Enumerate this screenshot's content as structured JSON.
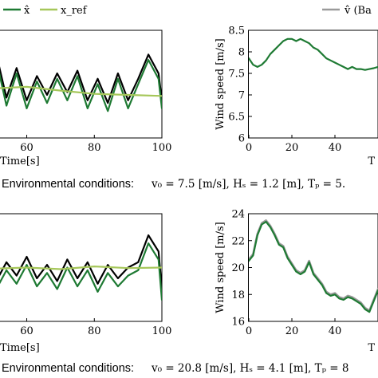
{
  "legend_left": {
    "entries": [
      {
        "label": "x̂",
        "color": "#1e7a33"
      },
      {
        "label": "x_ref",
        "color": "#a6c75a"
      }
    ]
  },
  "legend_right": {
    "entries": [
      {
        "label": "v̂ (Ba",
        "color": "#9a9a9a"
      }
    ]
  },
  "captions": [
    {
      "sans": "Environmental conditions:",
      "math": "v₀ = 7.5 [m/s], Hₛ = 1.2 [m], Tₚ = 5."
    },
    {
      "sans": "Environmental conditions:",
      "math": "v₀ = 20.8 [m/s], Hₛ = 4.1 [m], Tₚ = 8"
    }
  ],
  "chart_data": [
    {
      "type": "line",
      "xlabel": "Time[s]",
      "xlim": [
        0,
        100
      ],
      "xticks": [
        60,
        80,
        100
      ],
      "ylim": [
        -1,
        1
      ],
      "colors": {
        "black": "#000000",
        "x_hat": "#1e7a33",
        "x_ref": "#a6c75a"
      },
      "series": [
        {
          "name": "",
          "color": "#000000",
          "x": [
            0,
            3,
            6,
            9,
            12,
            15,
            18,
            21,
            24,
            27,
            30,
            33,
            36,
            39,
            42,
            45,
            48,
            51,
            54,
            57,
            60,
            63,
            66,
            69,
            72,
            75,
            78,
            81,
            84,
            87,
            90,
            93,
            96,
            99,
            100
          ],
          "y": [
            0.55,
            0.1,
            0.5,
            0.35,
            0.45,
            0.15,
            0.2,
            0.35,
            0.1,
            0.45,
            0.05,
            0.4,
            -0.1,
            0.3,
            -0.2,
            0.35,
            -0.05,
            0.55,
            -0.25,
            0.3,
            -0.3,
            0.15,
            -0.2,
            0.2,
            -0.15,
            0.25,
            -0.3,
            0.1,
            -0.35,
            0.2,
            -0.3,
            0.1,
            0.55,
            0.2,
            -0.3
          ]
        },
        {
          "name": "x̂",
          "color": "#1e7a33",
          "x": [
            0,
            3,
            6,
            9,
            12,
            15,
            18,
            21,
            24,
            27,
            30,
            33,
            36,
            39,
            42,
            45,
            48,
            51,
            54,
            57,
            60,
            63,
            66,
            69,
            72,
            75,
            78,
            81,
            84,
            87,
            90,
            93,
            96,
            99,
            100
          ],
          "y": [
            0.45,
            0.0,
            0.4,
            0.25,
            0.35,
            0.05,
            0.1,
            0.3,
            0.0,
            0.35,
            -0.1,
            0.3,
            -0.25,
            0.2,
            -0.35,
            0.25,
            -0.2,
            0.45,
            -0.4,
            0.2,
            -0.45,
            0.05,
            -0.35,
            0.1,
            -0.3,
            0.15,
            -0.45,
            0.0,
            -0.5,
            0.1,
            -0.45,
            0.0,
            0.45,
            0.1,
            -0.45
          ]
        },
        {
          "name": "x_ref",
          "color": "#a6c75a",
          "x": [
            0,
            10,
            20,
            30,
            40,
            50,
            60,
            70,
            80,
            90,
            100
          ],
          "y": [
            0.05,
            0.08,
            0.02,
            0.0,
            -0.04,
            -0.08,
            -0.05,
            -0.12,
            -0.18,
            -0.2,
            -0.22
          ]
        }
      ]
    },
    {
      "type": "line",
      "xlabel": "T",
      "ylabel": "Wind speed [m/s]",
      "xlim": [
        0,
        60
      ],
      "ylim": [
        6,
        8.5
      ],
      "xticks": [
        0,
        20,
        40
      ],
      "yticks": [
        6,
        6.5,
        7,
        7.5,
        8,
        8.5
      ],
      "ytick_labels": [
        "6",
        "6.5",
        "7",
        "7.5",
        "8",
        "8.5"
      ],
      "series": [
        {
          "name": "",
          "color": "#1e7a33",
          "x": [
            0,
            2,
            4,
            6,
            8,
            10,
            12,
            14,
            16,
            18,
            20,
            22,
            24,
            26,
            28,
            30,
            32,
            34,
            36,
            38,
            40,
            42,
            44,
            46,
            48,
            50,
            52,
            54,
            56,
            58,
            60
          ],
          "y": [
            7.85,
            7.7,
            7.65,
            7.7,
            7.8,
            7.95,
            8.05,
            8.15,
            8.25,
            8.3,
            8.3,
            8.25,
            8.3,
            8.25,
            8.2,
            8.1,
            8.05,
            7.95,
            7.85,
            7.8,
            7.75,
            7.7,
            7.65,
            7.6,
            7.65,
            7.6,
            7.6,
            7.58,
            7.6,
            7.62,
            7.65
          ]
        }
      ]
    },
    {
      "type": "line",
      "xlabel": "Time[s]",
      "xlim": [
        0,
        100
      ],
      "xticks": [
        60,
        80,
        100
      ],
      "ylim": [
        -1,
        1
      ],
      "series": [
        {
          "name": "",
          "color": "#000000",
          "x": [
            0,
            3,
            6,
            9,
            12,
            15,
            18,
            21,
            24,
            27,
            30,
            33,
            36,
            39,
            42,
            45,
            48,
            51,
            54,
            57,
            60,
            63,
            66,
            69,
            72,
            75,
            78,
            81,
            84,
            87,
            90,
            93,
            96,
            99,
            100
          ],
          "y": [
            0.5,
            0.6,
            0.35,
            0.2,
            0.45,
            0.0,
            0.4,
            -0.15,
            0.3,
            -0.2,
            0.35,
            0.0,
            0.45,
            -0.35,
            0.3,
            -0.1,
            0.25,
            -0.25,
            0.1,
            -0.15,
            0.2,
            -0.2,
            0.05,
            -0.25,
            0.15,
            -0.2,
            0.1,
            -0.3,
            0.05,
            -0.2,
            0.0,
            0.1,
            0.6,
            0.3,
            -0.4
          ]
        },
        {
          "name": "x̂",
          "color": "#1e7a33",
          "x": [
            0,
            3,
            6,
            9,
            12,
            15,
            18,
            21,
            24,
            27,
            30,
            33,
            36,
            39,
            42,
            45,
            48,
            51,
            54,
            57,
            60,
            63,
            66,
            69,
            72,
            75,
            78,
            81,
            84,
            87,
            90,
            93,
            96,
            99,
            100
          ],
          "y": [
            0.35,
            0.45,
            0.2,
            0.05,
            0.3,
            -0.15,
            0.25,
            -0.3,
            0.15,
            -0.35,
            0.2,
            -0.15,
            0.3,
            -0.55,
            0.15,
            -0.25,
            0.1,
            -0.4,
            -0.05,
            -0.3,
            0.05,
            -0.35,
            -0.1,
            -0.4,
            0.0,
            -0.35,
            -0.05,
            -0.45,
            -0.1,
            -0.35,
            -0.15,
            -0.05,
            0.45,
            0.15,
            -0.6
          ]
        },
        {
          "name": "x_ref",
          "color": "#a6c75a",
          "x": [
            0,
            10,
            20,
            30,
            40,
            50,
            60,
            70,
            80,
            90,
            100
          ],
          "y": [
            0.05,
            0.03,
            0.04,
            0.0,
            0.02,
            -0.02,
            0.0,
            -0.03,
            0.02,
            -0.01,
            0.0
          ]
        }
      ]
    },
    {
      "type": "line",
      "xlabel": "T",
      "ylabel": "Wind speed [m/s]",
      "xlim": [
        0,
        60
      ],
      "ylim": [
        16,
        24
      ],
      "xticks": [
        0,
        20,
        40
      ],
      "yticks": [
        16,
        18,
        20,
        22,
        24
      ],
      "ytick_labels": [
        "16",
        "18",
        "20",
        "22",
        "24"
      ],
      "series": [
        {
          "name": "",
          "color": "#9a9a9a",
          "x": [
            0,
            2,
            4,
            6,
            8,
            10,
            12,
            14,
            16,
            18,
            20,
            22,
            24,
            26,
            28,
            30,
            32,
            34,
            36,
            38,
            40,
            42,
            44,
            46,
            48,
            50,
            52,
            54,
            56,
            58,
            60
          ],
          "y": [
            20.6,
            21.0,
            22.5,
            23.3,
            23.5,
            23.1,
            22.5,
            21.8,
            21.6,
            20.8,
            20.3,
            19.8,
            19.6,
            19.8,
            20.5,
            19.6,
            19.2,
            18.8,
            18.2,
            18.0,
            18.1,
            17.8,
            17.7,
            17.9,
            17.8,
            17.6,
            17.4,
            17.0,
            16.8,
            17.6,
            18.4
          ]
        },
        {
          "name": "",
          "color": "#1e7a33",
          "x": [
            0,
            2,
            4,
            6,
            8,
            10,
            12,
            14,
            16,
            18,
            20,
            22,
            24,
            26,
            28,
            30,
            32,
            34,
            36,
            38,
            40,
            42,
            44,
            46,
            48,
            50,
            52,
            54,
            56,
            58,
            60
          ],
          "y": [
            20.5,
            20.9,
            22.4,
            23.2,
            23.4,
            23.0,
            22.4,
            21.7,
            21.5,
            20.7,
            20.2,
            19.7,
            19.5,
            19.7,
            20.4,
            19.5,
            19.1,
            18.7,
            18.1,
            17.9,
            18.0,
            17.7,
            17.6,
            17.8,
            17.7,
            17.5,
            17.3,
            16.9,
            16.7,
            17.5,
            18.3
          ]
        }
      ]
    }
  ]
}
